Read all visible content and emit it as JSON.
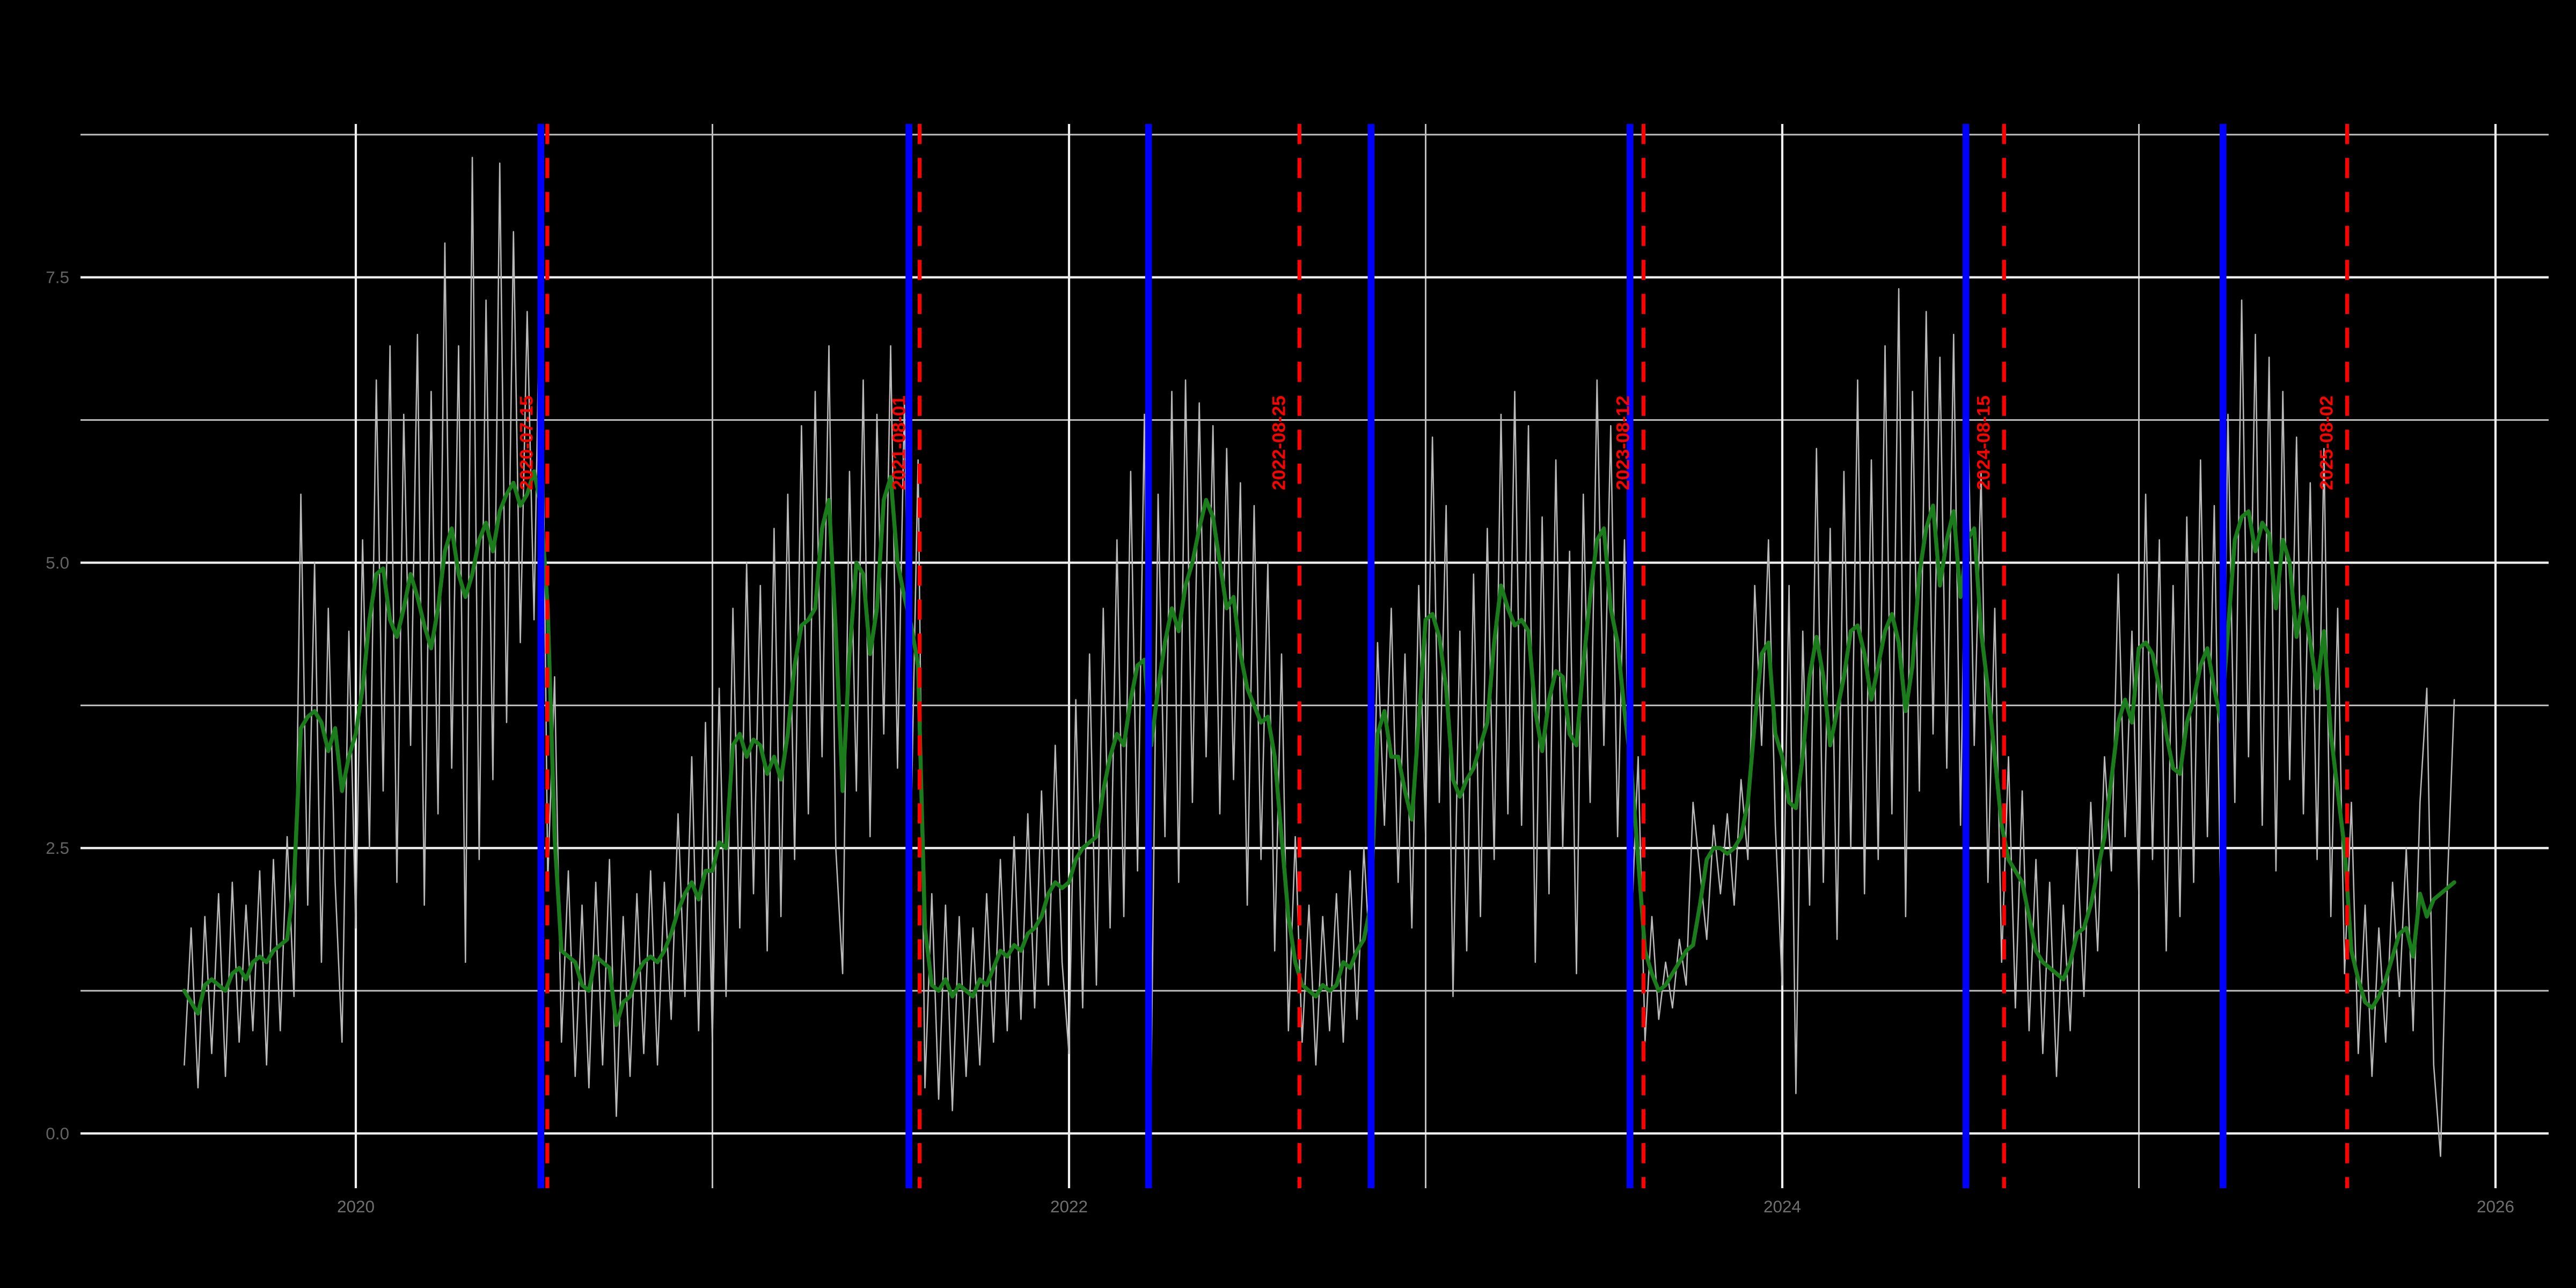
{
  "chart_data": {
    "type": "line",
    "title": "",
    "background": "#000000",
    "grid": {
      "major_color": "#f0f0f0",
      "minor_color": "#c0c0c0",
      "major_width": 1.4,
      "minor_width": 1.0
    },
    "x_axis": {
      "tick_labels": [
        "2020",
        "2022",
        "2024",
        "2026"
      ],
      "tick_years": [
        2020,
        2022,
        2024,
        2026
      ],
      "minor_years": [
        2021,
        2023,
        2025
      ],
      "range_years": [
        2019.23,
        2026.15
      ],
      "label_color": "#6f6f6f"
    },
    "y_axis": {
      "tick_labels": [
        "0.0",
        "2.5",
        "5.0",
        "7.5"
      ],
      "tick_values": [
        0,
        2.5,
        5,
        7.5
      ],
      "minor_values": [
        1.25,
        3.75,
        6.25,
        8.75
      ],
      "range": [
        -0.48,
        8.85
      ],
      "label_color": "#636363"
    },
    "legend": "none",
    "series": [
      {
        "name": "daily-values",
        "color": "#b9b9b9",
        "width": 0.85,
        "x_start_year": 2019.519,
        "dx_years": 0.0192308,
        "values": [
          0.6,
          1.8,
          0.4,
          1.9,
          0.7,
          2.1,
          0.5,
          2.2,
          0.8,
          2.0,
          0.9,
          2.3,
          0.6,
          2.4,
          0.9,
          2.6,
          1.2,
          5.6,
          2.0,
          5.0,
          1.5,
          4.6,
          2.2,
          0.8,
          4.4,
          1.8,
          5.2,
          2.5,
          6.6,
          3.0,
          6.9,
          2.2,
          6.3,
          3.4,
          7.0,
          2.0,
          6.5,
          2.8,
          7.8,
          3.2,
          6.9,
          1.5,
          8.55,
          2.4,
          7.3,
          3.1,
          8.5,
          3.6,
          7.9,
          4.3,
          7.2,
          4.5,
          8.0,
          2.2,
          4.0,
          0.8,
          2.3,
          0.5,
          2.0,
          0.4,
          2.2,
          0.6,
          2.4,
          0.15,
          1.9,
          0.5,
          2.1,
          0.7,
          2.3,
          0.6,
          2.2,
          1.0,
          2.8,
          1.2,
          3.3,
          0.9,
          3.6,
          0.8,
          3.9,
          1.2,
          4.6,
          1.8,
          5.0,
          2.1,
          4.8,
          1.6,
          5.3,
          1.9,
          5.6,
          2.4,
          6.2,
          2.8,
          6.5,
          3.3,
          6.9,
          2.5,
          1.4,
          5.8,
          3.0,
          6.6,
          2.6,
          6.3,
          3.5,
          6.9,
          3.2,
          6.4,
          2.8,
          5.9,
          0.4,
          2.1,
          0.3,
          2.0,
          0.2,
          1.9,
          0.5,
          1.8,
          0.6,
          2.1,
          0.8,
          2.4,
          0.9,
          2.6,
          1.0,
          2.8,
          1.1,
          3.0,
          1.3,
          3.4,
          1.5,
          0.7,
          3.8,
          1.1,
          4.2,
          1.3,
          4.6,
          1.8,
          5.2,
          1.9,
          5.8,
          2.3,
          6.3,
          0.55,
          5.6,
          2.6,
          6.5,
          2.2,
          6.6,
          2.9,
          6.4,
          3.3,
          6.2,
          2.8,
          6.0,
          3.1,
          5.7,
          2.0,
          5.5,
          2.4,
          5.0,
          1.6,
          4.2,
          0.9,
          2.6,
          0.8,
          2.0,
          0.6,
          1.9,
          0.9,
          2.1,
          0.8,
          2.3,
          1.0,
          2.5,
          1.4,
          4.3,
          2.7,
          4.6,
          2.2,
          4.2,
          1.8,
          4.8,
          2.6,
          6.1,
          2.9,
          5.5,
          1.2,
          4.4,
          1.6,
          4.9,
          1.9,
          5.3,
          2.4,
          6.3,
          2.8,
          6.5,
          2.7,
          6.2,
          1.5,
          5.4,
          2.1,
          5.9,
          2.5,
          5.1,
          1.4,
          5.6,
          2.9,
          6.6,
          3.4,
          6.2,
          2.6,
          5.2,
          1.8,
          3.3,
          0.8,
          1.9,
          1.0,
          1.5,
          1.1,
          1.7,
          1.3,
          2.9,
          2.3,
          1.7,
          2.7,
          2.1,
          2.8,
          2.0,
          3.1,
          2.4,
          4.8,
          3.4,
          5.2,
          2.7,
          1.3,
          4.8,
          0.35,
          4.4,
          2.0,
          6.0,
          2.2,
          5.3,
          1.7,
          5.8,
          2.5,
          6.6,
          2.1,
          5.9,
          2.4,
          6.9,
          2.8,
          7.4,
          1.9,
          6.5,
          3.0,
          7.2,
          3.5,
          6.8,
          3.2,
          7.0,
          2.7,
          6.6,
          3.4,
          5.8,
          2.2,
          4.6,
          1.5,
          3.3,
          1.1,
          3.0,
          0.9,
          2.4,
          0.7,
          2.2,
          0.5,
          2.0,
          0.9,
          2.5,
          1.2,
          2.9,
          1.6,
          3.3,
          2.3,
          4.9,
          2.6,
          4.4,
          2.1,
          5.6,
          2.4,
          5.2,
          1.6,
          4.8,
          1.9,
          5.4,
          2.2,
          5.9,
          2.6,
          5.5,
          1.8,
          6.3,
          2.9,
          7.3,
          3.3,
          7.0,
          2.7,
          6.8,
          2.3,
          6.5,
          3.1,
          6.1,
          2.8,
          5.7,
          2.4,
          6.0,
          1.9,
          4.6,
          1.4,
          2.9,
          0.7,
          2.0,
          0.5,
          1.8,
          0.8,
          2.2,
          1.2,
          2.5,
          0.9,
          2.9,
          3.9,
          0.6,
          -0.2,
          2.2,
          3.8
        ]
      },
      {
        "name": "smoothed-trend",
        "color": "#1a7c1a",
        "width": 2.5,
        "x_start_year": 2019.519,
        "dx_years": 0.0192308,
        "values": [
          1.25,
          1.15,
          1.05,
          1.3,
          1.35,
          1.3,
          1.25,
          1.4,
          1.45,
          1.35,
          1.5,
          1.55,
          1.5,
          1.6,
          1.65,
          1.7,
          2.2,
          3.55,
          3.65,
          3.7,
          3.6,
          3.35,
          3.55,
          3.0,
          3.3,
          3.5,
          3.9,
          4.5,
          4.9,
          4.95,
          4.5,
          4.35,
          4.6,
          4.9,
          4.7,
          4.45,
          4.25,
          4.6,
          5.1,
          5.3,
          4.9,
          4.7,
          4.9,
          5.2,
          5.35,
          5.1,
          5.45,
          5.6,
          5.7,
          5.5,
          5.6,
          5.8,
          5.5,
          4.6,
          2.6,
          1.6,
          1.55,
          1.5,
          1.3,
          1.25,
          1.55,
          1.5,
          1.45,
          0.95,
          1.15,
          1.2,
          1.4,
          1.5,
          1.55,
          1.5,
          1.6,
          1.75,
          1.95,
          2.1,
          2.2,
          2.05,
          2.3,
          2.3,
          2.55,
          2.5,
          3.4,
          3.5,
          3.3,
          3.45,
          3.4,
          3.15,
          3.3,
          3.1,
          3.5,
          4.1,
          4.45,
          4.5,
          4.6,
          5.3,
          5.55,
          4.4,
          3.0,
          4.2,
          5.0,
          4.9,
          4.2,
          4.6,
          5.55,
          5.75,
          5.0,
          4.7,
          4.45,
          4.1,
          1.8,
          1.3,
          1.25,
          1.35,
          1.2,
          1.3,
          1.25,
          1.2,
          1.35,
          1.3,
          1.45,
          1.6,
          1.55,
          1.65,
          1.6,
          1.75,
          1.8,
          1.9,
          2.1,
          2.2,
          2.15,
          2.2,
          2.4,
          2.5,
          2.55,
          2.6,
          3.0,
          3.3,
          3.5,
          3.4,
          3.8,
          4.1,
          4.15,
          3.4,
          3.9,
          4.3,
          4.6,
          4.4,
          4.8,
          5.0,
          5.3,
          5.55,
          5.4,
          5.0,
          4.6,
          4.7,
          4.2,
          3.9,
          3.75,
          3.6,
          3.65,
          3.3,
          2.6,
          1.9,
          1.5,
          1.3,
          1.25,
          1.2,
          1.3,
          1.25,
          1.3,
          1.5,
          1.45,
          1.6,
          1.7,
          2.0,
          3.5,
          3.7,
          3.3,
          3.3,
          3.0,
          2.75,
          3.6,
          4.5,
          4.55,
          4.35,
          3.9,
          3.1,
          2.95,
          3.1,
          3.2,
          3.4,
          3.6,
          4.3,
          4.8,
          4.6,
          4.45,
          4.5,
          4.4,
          3.7,
          3.35,
          3.8,
          4.05,
          4.0,
          3.5,
          3.4,
          4.1,
          4.7,
          5.2,
          5.3,
          4.6,
          4.3,
          3.7,
          3.2,
          2.4,
          1.6,
          1.4,
          1.25,
          1.3,
          1.4,
          1.5,
          1.6,
          1.65,
          2.0,
          2.4,
          2.5,
          2.5,
          2.45,
          2.5,
          2.6,
          2.9,
          3.6,
          4.2,
          4.3,
          3.5,
          3.3,
          2.9,
          2.85,
          3.3,
          4.0,
          4.35,
          4.0,
          3.4,
          3.7,
          4.0,
          4.4,
          4.45,
          4.2,
          3.8,
          4.1,
          4.4,
          4.55,
          4.3,
          3.7,
          4.1,
          4.9,
          5.3,
          5.5,
          4.8,
          5.2,
          5.45,
          4.7,
          5.2,
          5.3,
          4.4,
          3.9,
          3.3,
          2.7,
          2.4,
          2.3,
          2.2,
          1.9,
          1.6,
          1.5,
          1.45,
          1.4,
          1.35,
          1.5,
          1.75,
          1.8,
          2.0,
          2.3,
          2.6,
          3.1,
          3.6,
          3.8,
          3.6,
          4.25,
          4.3,
          4.2,
          3.9,
          3.5,
          3.2,
          3.15,
          3.6,
          3.8,
          4.1,
          4.25,
          3.9,
          3.6,
          4.4,
          5.2,
          5.4,
          5.45,
          5.1,
          5.35,
          5.25,
          4.6,
          5.2,
          5.0,
          4.35,
          4.7,
          4.3,
          3.9,
          4.4,
          3.5,
          3.0,
          2.5,
          1.6,
          1.35,
          1.15,
          1.1,
          1.2,
          1.35,
          1.55,
          1.75,
          1.8,
          1.55,
          2.1,
          1.9,
          2.05,
          2.1,
          2.15,
          2.2
        ]
      }
    ],
    "event_lines_blue": {
      "color": "#0000ff",
      "style": "solid",
      "width": 4.2,
      "dates_decimal": [
        2020.519,
        2021.551,
        2022.223,
        2022.847,
        2023.573,
        2024.515,
        2025.236
      ]
    },
    "event_lines_red": {
      "color": "#ff0000",
      "style": "dashed",
      "width": 2.4,
      "dash": "12.5 8.6",
      "labels": [
        "2020-07-15",
        "2021-08-01",
        "2022-08-25",
        "2023-08-12",
        "2024-08-15",
        "2025-08-02"
      ],
      "dates_decimal": [
        2020.537,
        2021.581,
        2022.646,
        2023.611,
        2024.622,
        2025.584
      ],
      "label_color": "#ff0000",
      "label_center_value": 6.05
    }
  }
}
